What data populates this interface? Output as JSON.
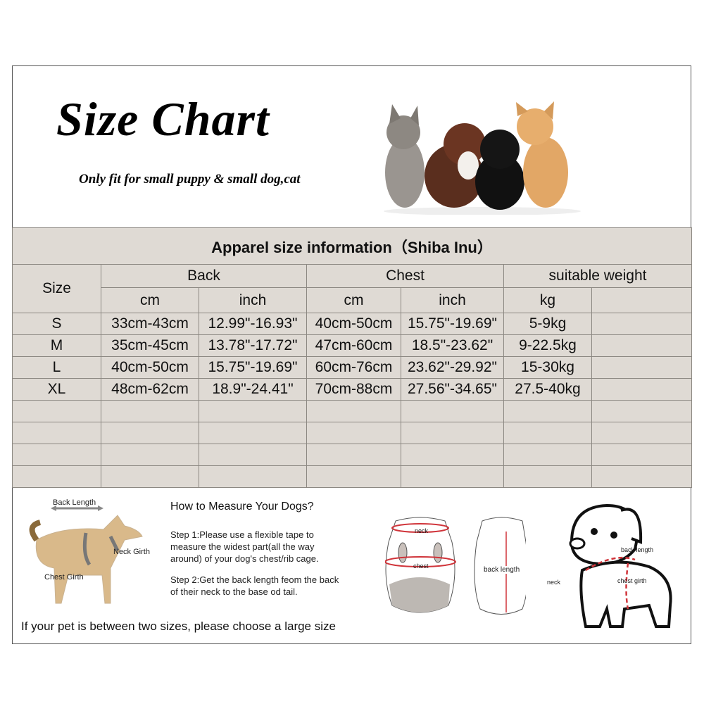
{
  "header": {
    "title": "Size Chart",
    "subtitle": "Only fit for  small puppy & small dog,cat"
  },
  "table": {
    "title": "Apparel  size  information（Shiba Inu）",
    "size_header": "Size",
    "groups": [
      "Back",
      "Chest",
      "suitable weight"
    ],
    "units": [
      "cm",
      "inch",
      "cm",
      "inch",
      "kg",
      ""
    ],
    "rows": [
      [
        "S",
        "33cm-43cm",
        "12.99\"-16.93\"",
        "40cm-50cm",
        "15.75\"-19.69\"",
        "5-9kg",
        ""
      ],
      [
        "M",
        "35cm-45cm",
        "13.78\"-17.72\"",
        "47cm-60cm",
        "18.5\"-23.62\"",
        "9-22.5kg",
        ""
      ],
      [
        "L",
        "40cm-50cm",
        "15.75\"-19.69\"",
        "60cm-76cm",
        "23.62\"-29.92\"",
        "15-30kg",
        ""
      ],
      [
        "XL",
        "48cm-62cm",
        "18.9\"-24.41\"",
        "70cm-88cm",
        "27.56\"-34.65\"",
        "27.5-40kg",
        ""
      ]
    ],
    "empty_rows": 4,
    "background": "#dfdad4"
  },
  "measure": {
    "dog_labels": {
      "back": "Back Length",
      "neck": "Neck Girth",
      "chest": "Chest Girth"
    },
    "heading": "How to Measure Your Dogs?",
    "step1": "Step 1:Please use a flexible tape to measure the widest part(all the way around) of your dog's chest/rib cage.",
    "step2": "Step 2:Get the back length feom the back of their neck to the base od tail.",
    "garment_labels": {
      "neck": "neck",
      "chest": "chest",
      "back": "back length"
    },
    "puppy_labels": {
      "back": "back length",
      "neck": "neck",
      "chest": "chest girth"
    },
    "note": "If your pet is between two sizes, please choose a large size",
    "accent": "#d0343a"
  }
}
